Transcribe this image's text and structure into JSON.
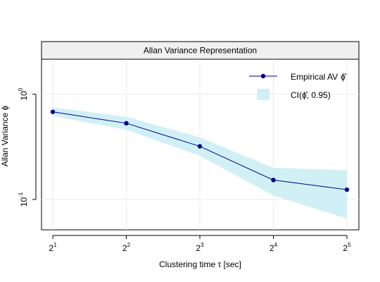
{
  "chart_data": {
    "type": "line",
    "title": "Allan Variance Representation",
    "xlabel": "Clustering time τ [sec]",
    "ylabel": "Allan Variance ϕ",
    "x_scale": "log2",
    "y_scale": "log10",
    "xlim_exponent": [
      0,
      4
    ],
    "ylim": [
      0.0515,
      2.15
    ],
    "x_ticks": [
      {
        "base": "2",
        "exp": "1",
        "value": 2
      },
      {
        "base": "2",
        "exp": "2",
        "value": 4
      },
      {
        "base": "2",
        "exp": "3",
        "value": 8
      },
      {
        "base": "2",
        "exp": "4",
        "value": 16
      },
      {
        "base": "2",
        "exp": "5",
        "value": 32
      }
    ],
    "y_ticks": [
      {
        "base": "10",
        "exp": "0",
        "value": 1
      },
      {
        "base": "10",
        "exp": "-1",
        "value": 0.1
      }
    ],
    "grid": true,
    "legend_position": "top-right",
    "series": [
      {
        "name": "Empirical AV ϕ̂",
        "kind": "line+points",
        "color": "#00008b",
        "x": [
          2,
          4,
          8,
          16,
          32
        ],
        "y": [
          0.68,
          0.53,
          0.32,
          0.153,
          0.124
        ]
      },
      {
        "name": "CI(ϕ̂, 0.95)",
        "kind": "band",
        "color": "#d1f0f5",
        "x": [
          2,
          4,
          8,
          16,
          32
        ],
        "lower": [
          0.62,
          0.46,
          0.26,
          0.109,
          0.066
        ],
        "upper": [
          0.75,
          0.61,
          0.39,
          0.2,
          0.19
        ]
      }
    ]
  },
  "legend": {
    "line_label": "Empirical AV",
    "line_symbol": "ϕ̂",
    "band_label": "CI(ϕ̂, 0.95)"
  }
}
